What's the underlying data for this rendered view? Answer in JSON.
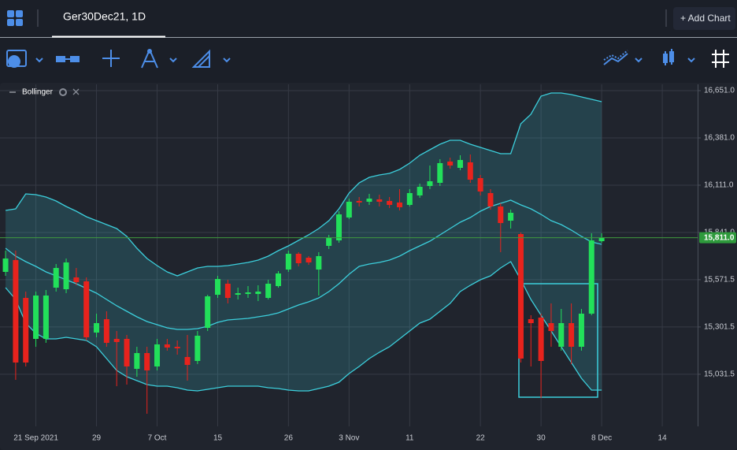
{
  "ui": {
    "tab_title": "Ger30Dec21, 1D",
    "add_chart": "+ Add Chart"
  },
  "chart_data": {
    "type": "candlestick",
    "up_color": "#22e05a",
    "down_color": "#e8231d",
    "open": [
      15616,
      15683.5,
      15467.5,
      15233.5,
      15233.5,
      15526,
      15517,
      15584.5,
      15562,
      15269.5,
      15346,
      15233.5,
      15233.5,
      15062.5,
      15152.5,
      15076,
      15202,
      15188.5,
      15130,
      15107.5,
      15296.5,
      15485.5,
      15548.5,
      15485.5,
      15490,
      15490,
      15467.5,
      15535,
      15629.5,
      15719.5,
      15697,
      15629.5,
      15764.5,
      15796,
      15926.5,
      16021,
      16016.5,
      16030,
      16021,
      16012,
      15998.5,
      16052.5,
      16106.5,
      16124.5,
      16246,
      16210,
      16241.5,
      16151.5,
      16066,
      15989.5,
      15908.5,
      15832,
      15346,
      15355,
      15323.5,
      15188.5,
      15323.5,
      15188.5,
      15377.5,
      15791.5
    ],
    "high": [
      15737.5,
      15737.5,
      15503.5,
      15503.5,
      15512.5,
      15661,
      15692.5,
      15638.5,
      15584.5,
      15377.5,
      15391,
      15278.5,
      15256,
      15188.5,
      15188.5,
      15233.5,
      15233.5,
      15224.5,
      15256,
      15278.5,
      15485.5,
      15593.5,
      15571,
      15526,
      15535,
      15539.5,
      15571,
      15620.5,
      15737.5,
      15728.5,
      15706,
      15728.5,
      15827.5,
      15962.5,
      16034.5,
      16043.5,
      16061.5,
      16057,
      16043.5,
      16088.5,
      16088.5,
      16120,
      16223.5,
      16259.5,
      16268.5,
      16282,
      16286.5,
      16169.5,
      16088.5,
      16007.5,
      15971.5,
      15841,
      15368.5,
      15377.5,
      15436,
      15404.5,
      15436,
      15404.5,
      15836.5,
      15836.5
    ],
    "low": [
      15593.5,
      14999.5,
      15076,
      15188.5,
      15211,
      15503.5,
      15494.5,
      15539.5,
      15224.5,
      15242.5,
      15188.5,
      14963.5,
      14972.5,
      15017.5,
      14806,
      15053.5,
      15166,
      15143.5,
      14995,
      15089.5,
      15278.5,
      15467.5,
      15436,
      15458.5,
      15467.5,
      15449.5,
      15458.5,
      15526,
      15616,
      15647.5,
      15656.5,
      15481,
      15746.5,
      15782.5,
      15917.5,
      15989.5,
      15998.5,
      15989.5,
      15980.5,
      15967,
      15989.5,
      16039,
      16088.5,
      16106.5,
      16205.5,
      16196.5,
      16124.5,
      16052.5,
      15971.5,
      15728.5,
      15863.5,
      15098.5,
      15076,
      14896,
      15188.5,
      15166,
      15089.5,
      15166,
      15368.5,
      15782.5
    ],
    "close": [
      15692.5,
      15098.5,
      15098.5,
      15481,
      15481,
      15638.5,
      15670,
      15557.5,
      15242.5,
      15323.5,
      15211,
      15215.5,
      15076,
      15152.5,
      15053.5,
      15202,
      15184,
      15179.5,
      15085,
      15251.5,
      15476.5,
      15575.5,
      15467.5,
      15494.5,
      15499,
      15503.5,
      15548.5,
      15607,
      15719.5,
      15665.5,
      15670,
      15706,
      15809.5,
      15944.5,
      16016.5,
      16012,
      16034.5,
      16016.5,
      15998.5,
      15985,
      16066,
      16102,
      16133.5,
      16237,
      16223.5,
      16255,
      16142.5,
      16075,
      15989.5,
      15895,
      15953.5,
      15121,
      15323.5,
      15107.5,
      15278.5,
      15323.5,
      15188.5,
      15377.5,
      15796,
      15811
    ],
    "last_price_label": "15,811.0",
    "indicator": {
      "name": "Bollinger",
      "color": "#3ccfdc",
      "upper": [
        15967,
        15976,
        16061.5,
        16057,
        16043.5,
        16021,
        15989.5,
        15962.5,
        15931,
        15908.5,
        15886,
        15863.5,
        15818.5,
        15751,
        15692.5,
        15652,
        15616,
        15593.5,
        15616,
        15638.5,
        15647.5,
        15647.5,
        15652,
        15661,
        15670,
        15683.5,
        15706,
        15737.5,
        15764.5,
        15796,
        15827.5,
        15863.5,
        15908.5,
        15976,
        16066,
        16124.5,
        16156,
        16169.5,
        16178.5,
        16201,
        16237,
        16282,
        16313.5,
        16345,
        16367.5,
        16367.5,
        16345,
        16327,
        16309,
        16291,
        16291,
        16462,
        16516,
        16619.5,
        16637.5,
        16637.5,
        16628.5,
        16615,
        16601.5,
        16588
      ],
      "middle": [
        15751,
        15706,
        15674.5,
        15647.5,
        15616,
        15593.5,
        15571,
        15548.5,
        15521.5,
        15494.5,
        15458.5,
        15422.5,
        15391,
        15359.5,
        15332.5,
        15314.5,
        15296.5,
        15287.5,
        15287.5,
        15292,
        15305.5,
        15328,
        15341.5,
        15346,
        15350.5,
        15359.5,
        15368.5,
        15382,
        15404.5,
        15427,
        15445,
        15467.5,
        15503.5,
        15548.5,
        15602.5,
        15647.5,
        15661,
        15670,
        15683.5,
        15706,
        15737.5,
        15764.5,
        15791.5,
        15827.5,
        15863.5,
        15899.5,
        15926.5,
        15962.5,
        15989.5,
        16007.5,
        16025.5,
        15998.5,
        15976,
        15944.5,
        15908.5,
        15886,
        15854.5,
        15818.5,
        15787,
        15773.5
      ],
      "lower": [
        15526,
        15458.5,
        15323.5,
        15265,
        15233.5,
        15233.5,
        15242.5,
        15233.5,
        15224.5,
        15188.5,
        15121,
        15053.5,
        15017.5,
        14995,
        14972.5,
        14963.5,
        14963.5,
        14954.5,
        14941,
        14936.5,
        14945.5,
        14954.5,
        14963.5,
        14963.5,
        14963.5,
        14963.5,
        14954.5,
        14950,
        14941,
        14936.5,
        14936.5,
        14950,
        14963.5,
        14986,
        15035.5,
        15076,
        15121,
        15157,
        15188.5,
        15233.5,
        15278.5,
        15323.5,
        15346,
        15391,
        15436,
        15503.5,
        15539.5,
        15571,
        15593.5,
        15638.5,
        15674.5,
        15571,
        15458.5,
        15368.5,
        15278.5,
        15188.5,
        15098.5,
        15008.5,
        14941,
        14941
      ]
    },
    "xlim": [
      -0.55,
      68.5
    ],
    "xticks": [
      {
        "value": 3,
        "label": "21 Sep 2021"
      },
      {
        "value": 9,
        "label": "29"
      },
      {
        "value": 15,
        "label": "7 Oct"
      },
      {
        "value": 21,
        "label": "15"
      },
      {
        "value": 28,
        "label": "26"
      },
      {
        "value": 34,
        "label": "3 Nov"
      },
      {
        "value": 40,
        "label": "11"
      },
      {
        "value": 47,
        "label": "22"
      },
      {
        "value": 53,
        "label": "30"
      },
      {
        "value": 59,
        "label": "8 Dec"
      },
      {
        "value": 65,
        "label": "14"
      }
    ],
    "ylim": [
      14734,
      16687
    ],
    "yticks": [
      {
        "value": 16651,
        "label": "16,651.0"
      },
      {
        "value": 16381,
        "label": "16,381.0"
      },
      {
        "value": 16111,
        "label": "16,111.0"
      },
      {
        "value": 15841,
        "label": "15,841.0"
      },
      {
        "value": 15571.5,
        "label": "15,571.5"
      },
      {
        "value": 15301.5,
        "label": "15,301.5"
      },
      {
        "value": 15031.5,
        "label": "15,031.5"
      }
    ],
    "grid": true
  }
}
